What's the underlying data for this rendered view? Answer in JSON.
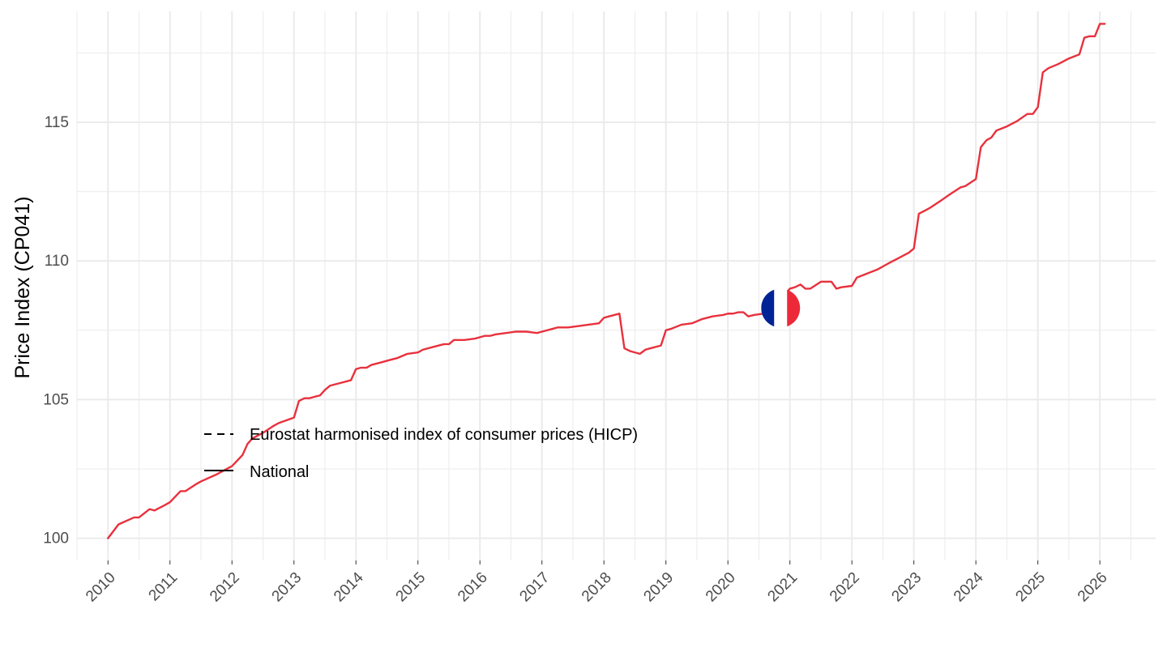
{
  "chart_data": {
    "type": "line",
    "title": "",
    "xlabel": "",
    "ylabel": "Price Index (CP041)",
    "xlim": [
      2009.5,
      2026.9
    ],
    "ylim": [
      99.2,
      119.0
    ],
    "grid": true,
    "x_tick_labels": [
      "2010",
      "2011",
      "2012",
      "2013",
      "2014",
      "2015",
      "2016",
      "2017",
      "2018",
      "2019",
      "2020",
      "2021",
      "2022",
      "2023",
      "2024",
      "2025",
      "2026"
    ],
    "y_ticks": [
      100,
      105,
      110,
      115
    ],
    "y_tick_labels": [
      "100",
      "105",
      "110",
      "115"
    ],
    "legend": {
      "position": "bottom-left",
      "entries": [
        {
          "label": "Eurostat harmonised index of consumer prices (HICP)",
          "linetype": "dashed"
        },
        {
          "label": "National",
          "linetype": "solid"
        }
      ]
    },
    "annotations": [
      {
        "type": "flag",
        "country": "France",
        "colors": [
          "#002395",
          "#ffffff",
          "#ed2939"
        ],
        "x": 2020.85,
        "y": 108.3
      }
    ],
    "series": [
      {
        "name": "National",
        "color": "#e8313d",
        "linetype": "solid",
        "x": [
          2010.0,
          2010.17,
          2010.42,
          2010.5,
          2010.67,
          2010.75,
          2010.92,
          2011.0,
          2011.17,
          2011.25,
          2011.42,
          2011.5,
          2011.75,
          2012.0,
          2012.17,
          2012.25,
          2012.33,
          2012.5,
          2012.67,
          2012.75,
          2013.0,
          2013.08,
          2013.17,
          2013.25,
          2013.33,
          2013.42,
          2013.5,
          2013.58,
          2013.75,
          2013.92,
          2014.0,
          2014.08,
          2014.17,
          2014.25,
          2014.42,
          2014.5,
          2014.67,
          2014.83,
          2015.0,
          2015.08,
          2015.25,
          2015.42,
          2015.5,
          2015.58,
          2015.75,
          2015.92,
          2016.0,
          2016.08,
          2016.17,
          2016.25,
          2016.42,
          2016.58,
          2016.75,
          2016.92,
          2017.0,
          2017.17,
          2017.25,
          2017.42,
          2017.58,
          2017.75,
          2017.92,
          2018.0,
          2018.08,
          2018.25,
          2018.33,
          2018.42,
          2018.58,
          2018.67,
          2018.75,
          2018.92,
          2019.0,
          2019.08,
          2019.25,
          2019.42,
          2019.58,
          2019.75,
          2019.92,
          2020.0,
          2020.08,
          2020.17,
          2020.25,
          2020.33,
          2020.42,
          2020.58,
          2020.67,
          2021.0,
          2021.08,
          2021.17,
          2021.25,
          2021.33,
          2021.5,
          2021.58,
          2021.67,
          2021.75,
          2021.83,
          2022.0,
          2022.08,
          2022.25,
          2022.42,
          2022.58,
          2022.75,
          2022.92,
          2023.0,
          2023.08,
          2023.25,
          2023.42,
          2023.58,
          2023.75,
          2023.83,
          2024.0,
          2024.08,
          2024.17,
          2024.25,
          2024.33,
          2024.5,
          2024.67,
          2024.83,
          2024.92,
          2025.0,
          2025.08,
          2025.17,
          2025.33,
          2025.5,
          2025.67,
          2025.75,
          2025.83,
          2025.92,
          2026.0,
          2026.08
        ],
        "y": [
          100.0,
          100.5,
          100.75,
          100.75,
          101.05,
          101.0,
          101.2,
          101.3,
          101.7,
          101.7,
          101.95,
          102.05,
          102.3,
          102.6,
          103.0,
          103.4,
          103.6,
          103.8,
          104.05,
          104.15,
          104.35,
          104.95,
          105.05,
          105.05,
          105.1,
          105.15,
          105.35,
          105.5,
          105.6,
          105.7,
          106.1,
          106.15,
          106.15,
          106.25,
          106.35,
          106.4,
          106.5,
          106.65,
          106.7,
          106.8,
          106.9,
          107.0,
          107.0,
          107.15,
          107.15,
          107.2,
          107.25,
          107.3,
          107.3,
          107.35,
          107.4,
          107.45,
          107.45,
          107.4,
          107.45,
          107.55,
          107.6,
          107.6,
          107.65,
          107.7,
          107.75,
          107.95,
          108.0,
          108.1,
          106.85,
          106.75,
          106.65,
          106.8,
          106.85,
          106.95,
          107.5,
          107.55,
          107.7,
          107.75,
          107.9,
          108.0,
          108.05,
          108.1,
          108.1,
          108.15,
          108.15,
          108.0,
          108.05,
          108.1,
          108.15,
          109.0,
          109.05,
          109.15,
          109.0,
          109.0,
          109.25,
          109.25,
          109.25,
          109.0,
          109.05,
          109.1,
          109.4,
          109.55,
          109.7,
          109.9,
          110.1,
          110.3,
          110.45,
          111.7,
          111.9,
          112.15,
          112.4,
          112.65,
          112.7,
          112.95,
          114.1,
          114.35,
          114.45,
          114.7,
          114.85,
          115.05,
          115.3,
          115.3,
          115.55,
          116.8,
          116.95,
          117.1,
          117.3,
          117.45,
          118.05,
          118.1,
          118.1,
          118.55,
          118.55
        ]
      }
    ]
  }
}
